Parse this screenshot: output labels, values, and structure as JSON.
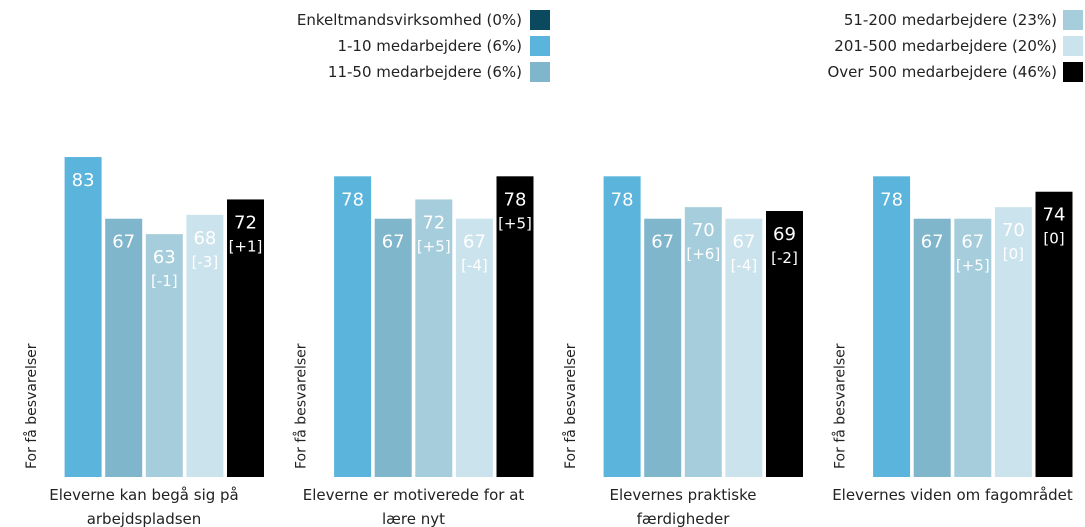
{
  "chart_data": {
    "type": "bar",
    "categories": [
      "Eleverne kan begå sig på\narbejdspladsen",
      "Eleverne er motiverede for at\nlære nyt",
      "Elevernes praktiske\nfærdigheder",
      "Elevernes viden om fagområdet"
    ],
    "annotation": "For få besvarelser",
    "series": [
      {
        "name": "Enkeltmandsvirksomhed (0%)",
        "color": "#0b4a5e",
        "values": [
          null,
          null,
          null,
          null
        ],
        "change_labels": [
          null,
          null,
          null,
          null
        ]
      },
      {
        "name": "1-10 medarbejdere (6%)",
        "color": "#5ab4dc",
        "values": [
          83,
          78,
          78,
          78
        ],
        "change_labels": [
          null,
          null,
          null,
          null
        ]
      },
      {
        "name": "11-50 medarbejdere (6%)",
        "color": "#80b6cb",
        "values": [
          67,
          67,
          67,
          67
        ],
        "change_labels": [
          null,
          null,
          null,
          null
        ]
      },
      {
        "name": "51-200 medarbejdere (23%)",
        "color": "#a5cddc",
        "values": [
          63,
          72,
          70,
          67
        ],
        "change_labels": [
          "[-1]",
          "[+5]",
          "[+6]",
          "[+5]"
        ]
      },
      {
        "name": "201-500 medarbejdere (20%)",
        "color": "#cbe3ec",
        "values": [
          68,
          67,
          67,
          70
        ],
        "change_labels": [
          "[-3]",
          "[-4]",
          "[-4]",
          "[0]"
        ]
      },
      {
        "name": "Over 500 medarbejdere (46%)",
        "color": "#000000",
        "values": [
          72,
          78,
          69,
          74
        ],
        "change_labels": [
          "[+1]",
          "[+5]",
          "[-2]",
          "[0]"
        ]
      }
    ]
  }
}
